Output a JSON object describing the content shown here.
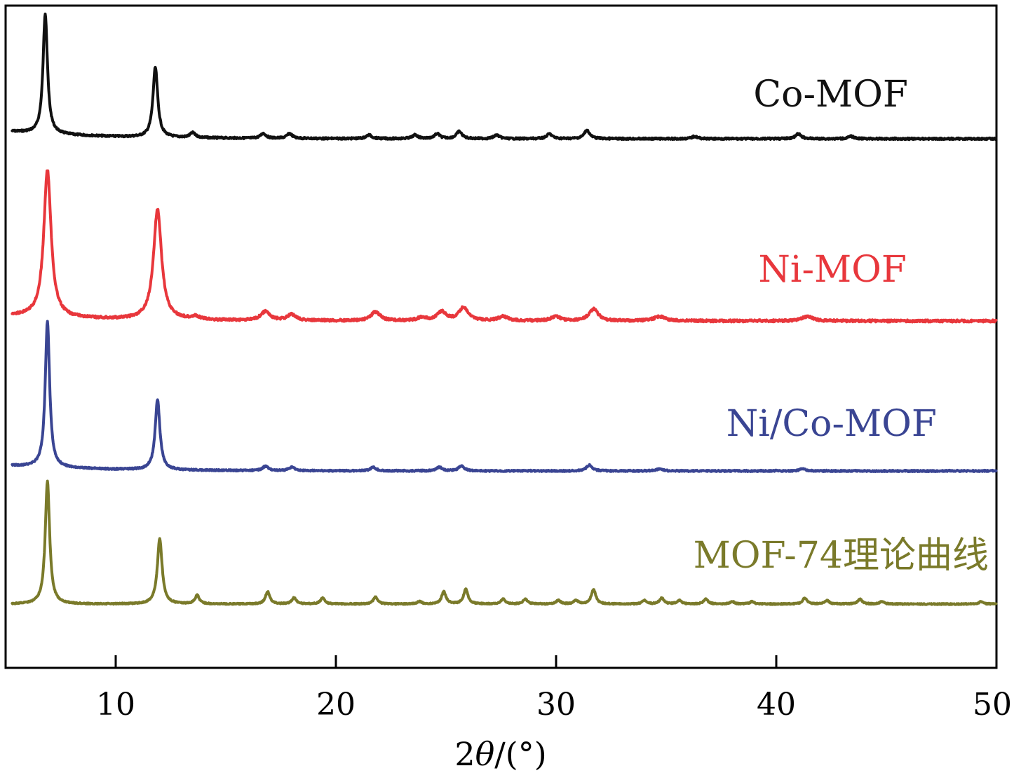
{
  "chart_data": {
    "type": "line",
    "title": "",
    "xlabel": "",
    "xlabel_parts": {
      "prefix": "2",
      "symbol": "θ",
      "suffix": "/(°)"
    },
    "ylabel": "",
    "xlim": [
      5,
      50
    ],
    "xticks": [
      10,
      20,
      30,
      40,
      50
    ],
    "y_ticks_shown": false,
    "grid": false,
    "legend": "none",
    "series": [
      {
        "name": "Co-MOF",
        "color": "#111111",
        "baseline": 0.05,
        "peaks": [
          {
            "x": 6.8,
            "y": 1.0,
            "w": 0.12
          },
          {
            "x": 11.8,
            "y": 0.58,
            "w": 0.13
          },
          {
            "x": 13.5,
            "y": 0.04,
            "w": 0.15
          },
          {
            "x": 16.7,
            "y": 0.04,
            "w": 0.15
          },
          {
            "x": 17.9,
            "y": 0.04,
            "w": 0.15
          },
          {
            "x": 21.5,
            "y": 0.03,
            "w": 0.15
          },
          {
            "x": 23.6,
            "y": 0.03,
            "w": 0.15
          },
          {
            "x": 24.6,
            "y": 0.04,
            "w": 0.15
          },
          {
            "x": 25.6,
            "y": 0.06,
            "w": 0.15
          },
          {
            "x": 27.3,
            "y": 0.03,
            "w": 0.15
          },
          {
            "x": 29.7,
            "y": 0.04,
            "w": 0.15
          },
          {
            "x": 31.4,
            "y": 0.07,
            "w": 0.15
          },
          {
            "x": 36.3,
            "y": 0.02,
            "w": 0.15
          },
          {
            "x": 41.0,
            "y": 0.04,
            "w": 0.15
          },
          {
            "x": 43.4,
            "y": 0.02,
            "w": 0.15
          }
        ]
      },
      {
        "name": "Ni-MOF",
        "color": "#e8373c",
        "baseline": 0.03,
        "peaks": [
          {
            "x": 6.9,
            "y": 1.0,
            "w": 0.2
          },
          {
            "x": 11.9,
            "y": 0.75,
            "w": 0.22
          },
          {
            "x": 13.6,
            "y": 0.02,
            "w": 0.25
          },
          {
            "x": 16.8,
            "y": 0.06,
            "w": 0.25
          },
          {
            "x": 18.0,
            "y": 0.04,
            "w": 0.25
          },
          {
            "x": 21.8,
            "y": 0.06,
            "w": 0.25
          },
          {
            "x": 23.9,
            "y": 0.02,
            "w": 0.25
          },
          {
            "x": 24.8,
            "y": 0.06,
            "w": 0.25
          },
          {
            "x": 25.8,
            "y": 0.09,
            "w": 0.25
          },
          {
            "x": 27.6,
            "y": 0.03,
            "w": 0.25
          },
          {
            "x": 30.0,
            "y": 0.03,
            "w": 0.25
          },
          {
            "x": 31.7,
            "y": 0.08,
            "w": 0.25
          },
          {
            "x": 34.7,
            "y": 0.03,
            "w": 0.3
          },
          {
            "x": 41.4,
            "y": 0.03,
            "w": 0.3
          }
        ]
      },
      {
        "name": "Ni/Co-MOF",
        "color": "#3a4593",
        "baseline": 0.03,
        "peaks": [
          {
            "x": 6.9,
            "y": 1.0,
            "w": 0.12
          },
          {
            "x": 11.9,
            "y": 0.48,
            "w": 0.13
          },
          {
            "x": 16.8,
            "y": 0.03,
            "w": 0.15
          },
          {
            "x": 18.0,
            "y": 0.025,
            "w": 0.15
          },
          {
            "x": 21.7,
            "y": 0.025,
            "w": 0.15
          },
          {
            "x": 24.7,
            "y": 0.025,
            "w": 0.15
          },
          {
            "x": 25.7,
            "y": 0.035,
            "w": 0.15
          },
          {
            "x": 31.5,
            "y": 0.04,
            "w": 0.15
          },
          {
            "x": 34.7,
            "y": 0.015,
            "w": 0.15
          },
          {
            "x": 41.2,
            "y": 0.015,
            "w": 0.15
          }
        ]
      },
      {
        "name": "MOF-74理论曲线",
        "color": "#7a7a2a",
        "baseline": 0.0,
        "peaks": [
          {
            "x": 6.9,
            "y": 1.0,
            "w": 0.12
          },
          {
            "x": 12.0,
            "y": 0.53,
            "w": 0.13
          },
          {
            "x": 13.7,
            "y": 0.07,
            "w": 0.12
          },
          {
            "x": 16.9,
            "y": 0.1,
            "w": 0.12
          },
          {
            "x": 18.1,
            "y": 0.05,
            "w": 0.12
          },
          {
            "x": 19.4,
            "y": 0.05,
            "w": 0.12
          },
          {
            "x": 21.8,
            "y": 0.06,
            "w": 0.12
          },
          {
            "x": 23.8,
            "y": 0.02,
            "w": 0.12
          },
          {
            "x": 24.9,
            "y": 0.1,
            "w": 0.12
          },
          {
            "x": 25.9,
            "y": 0.12,
            "w": 0.12
          },
          {
            "x": 27.6,
            "y": 0.04,
            "w": 0.12
          },
          {
            "x": 28.6,
            "y": 0.04,
            "w": 0.12
          },
          {
            "x": 30.1,
            "y": 0.03,
            "w": 0.12
          },
          {
            "x": 30.9,
            "y": 0.03,
            "w": 0.12
          },
          {
            "x": 31.7,
            "y": 0.12,
            "w": 0.12
          },
          {
            "x": 34.0,
            "y": 0.03,
            "w": 0.12
          },
          {
            "x": 34.8,
            "y": 0.05,
            "w": 0.12
          },
          {
            "x": 35.6,
            "y": 0.03,
            "w": 0.12
          },
          {
            "x": 36.8,
            "y": 0.04,
            "w": 0.12
          },
          {
            "x": 38.0,
            "y": 0.02,
            "w": 0.12
          },
          {
            "x": 38.9,
            "y": 0.02,
            "w": 0.12
          },
          {
            "x": 41.3,
            "y": 0.05,
            "w": 0.12
          },
          {
            "x": 42.3,
            "y": 0.03,
            "w": 0.12
          },
          {
            "x": 43.8,
            "y": 0.04,
            "w": 0.12
          },
          {
            "x": 44.8,
            "y": 0.02,
            "w": 0.12
          },
          {
            "x": 49.3,
            "y": 0.02,
            "w": 0.12
          }
        ]
      }
    ]
  }
}
